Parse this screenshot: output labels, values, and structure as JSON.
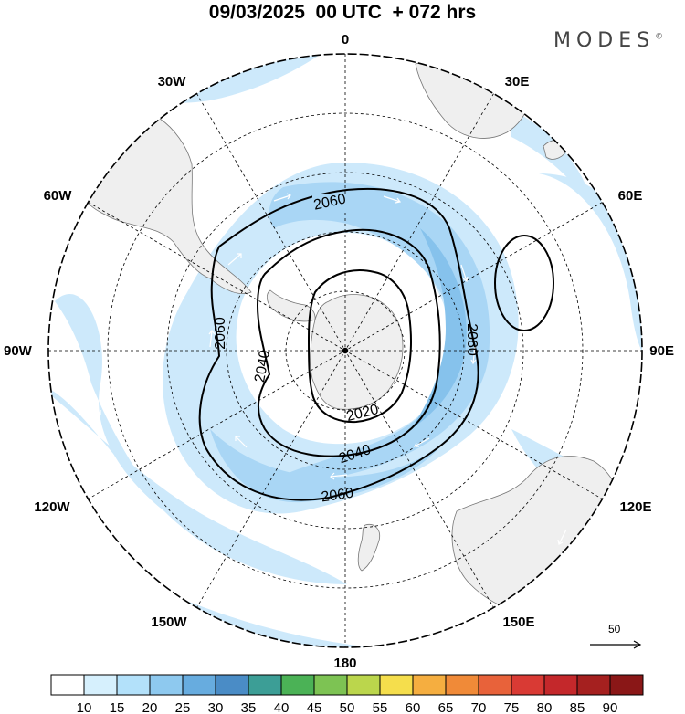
{
  "title": "09/03/2025  00 UTC  + 072 hrs",
  "logo": {
    "text": "MODES",
    "mark": "©"
  },
  "longitude_labels": {
    "lon_0": "0",
    "lon_30e": "30E",
    "lon_60e": "60E",
    "lon_90e": "90E",
    "lon_120e": "120E",
    "lon_150e": "150E",
    "lon_180": "180",
    "lon_150w": "150W",
    "lon_120w": "120W",
    "lon_90w": "90W",
    "lon_60w": "60W",
    "lon_30w": "30W"
  },
  "contour_labels": {
    "c2060_top": "2060",
    "c2060_left": "2060",
    "c2060_right": "2060",
    "c2060_bottom": "2060",
    "c2040_left": "2040",
    "c2040_bottom": "2040",
    "c2020": "2020"
  },
  "vector_scale": {
    "value": "50"
  },
  "colorbar": {
    "labels": [
      "10",
      "15",
      "20",
      "25",
      "30",
      "35",
      "40",
      "45",
      "50",
      "55",
      "60",
      "65",
      "70",
      "75",
      "80",
      "85",
      "90"
    ],
    "colors": [
      "#ffffff",
      "#d6f0fd",
      "#b3e1fa",
      "#8ec9ef",
      "#67acdf",
      "#4a8cc6",
      "#3c9e96",
      "#4bb256",
      "#7dc353",
      "#bbd64c",
      "#f5de4c",
      "#f5ae40",
      "#f08a38",
      "#e8623a",
      "#d93a34",
      "#c4282b",
      "#a5201f",
      "#8a1717"
    ]
  },
  "colors": {
    "land": "#efefef",
    "wind_light": "#cde9fb",
    "wind_mid": "#a9d6f5",
    "wind_strong": "#86c2ec",
    "contour": "#000000"
  }
}
